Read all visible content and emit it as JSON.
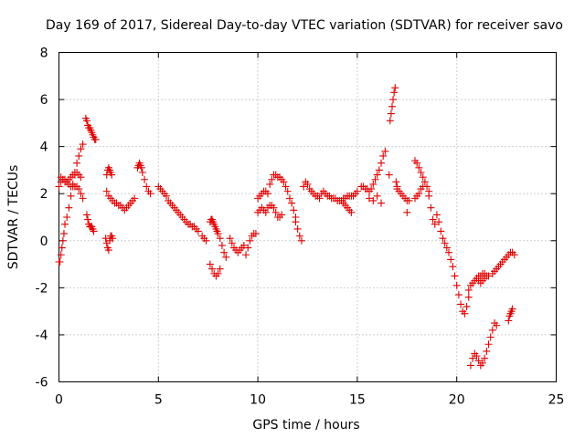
{
  "chart_data": {
    "type": "scatter",
    "title": "Day 169 of 2017, Sidereal Day-to-day VTEC variation (SDTVAR) for receiver savo",
    "xlabel": "GPS time / hours",
    "ylabel": "SDTVAR / TECUs",
    "xlim": [
      0,
      25
    ],
    "ylim": [
      -6,
      8
    ],
    "xticks": [
      0,
      5,
      10,
      15,
      20,
      25
    ],
    "yticks": [
      -6,
      -4,
      -2,
      0,
      2,
      4,
      6,
      8
    ],
    "grid": true,
    "marker": "+",
    "color": "#e00000",
    "series": [
      {
        "name": "SDTVAR",
        "x": [
          0.0,
          0.05,
          0.1,
          0.15,
          0.2,
          0.25,
          0.3,
          0.4,
          0.5,
          0.6,
          0.7,
          0.8,
          0.9,
          1.0,
          1.1,
          1.2,
          0.0,
          0.1,
          0.2,
          0.3,
          0.4,
          0.5,
          0.6,
          0.7,
          0.8,
          0.9,
          1.0,
          1.1,
          1.2,
          0.1,
          0.2,
          0.3,
          0.4,
          0.5,
          0.6,
          0.7,
          0.8,
          0.9,
          1.0,
          1.1,
          1.35,
          1.4,
          1.45,
          1.5,
          1.55,
          1.6,
          1.65,
          1.7,
          1.75,
          1.8,
          1.85,
          1.4,
          1.45,
          1.5,
          1.55,
          1.6,
          1.65,
          1.7,
          1.75,
          2.35,
          2.4,
          2.45,
          2.5,
          2.55,
          2.6,
          2.65,
          2.7,
          2.4,
          2.45,
          2.5,
          2.55,
          2.6,
          2.65,
          2.4,
          2.5,
          2.6,
          2.7,
          2.8,
          2.9,
          3.0,
          3.1,
          3.2,
          3.3,
          3.4,
          3.5,
          3.6,
          3.7,
          3.8,
          3.95,
          4.0,
          4.05,
          4.1,
          4.15,
          4.2,
          4.3,
          4.4,
          4.5,
          4.6,
          5.0,
          5.1,
          5.2,
          5.3,
          5.4,
          5.5,
          5.6,
          5.7,
          5.8,
          5.9,
          6.0,
          6.1,
          6.2,
          6.3,
          6.4,
          6.5,
          6.6,
          6.7,
          6.8,
          6.9,
          7.0,
          7.2,
          7.3,
          7.4,
          7.6,
          7.65,
          7.7,
          7.75,
          7.8,
          7.85,
          7.9,
          7.95,
          8.0,
          8.1,
          8.2,
          8.3,
          8.4,
          7.6,
          7.7,
          7.8,
          7.9,
          8.0,
          8.1,
          8.6,
          8.7,
          8.8,
          8.9,
          9.0,
          9.1,
          9.2,
          9.3,
          9.4,
          9.5,
          9.6,
          9.7,
          9.8,
          9.9,
          10.0,
          10.1,
          10.2,
          10.3,
          10.4,
          10.5,
          10.6,
          10.7,
          10.8,
          10.9,
          11.0,
          11.1,
          11.2,
          11.3,
          11.4,
          11.5,
          11.6,
          11.7,
          11.8,
          11.9,
          10.0,
          10.1,
          10.2,
          10.3,
          10.4,
          10.5,
          10.6,
          10.7,
          10.8,
          10.9,
          11.0,
          11.1,
          11.2,
          11.9,
          12.0,
          12.1,
          12.2,
          12.3,
          12.4,
          12.5,
          12.6,
          12.7,
          12.8,
          12.9,
          13.0,
          13.1,
          13.2,
          13.3,
          13.4,
          13.5,
          13.6,
          13.7,
          13.8,
          13.9,
          14.0,
          14.1,
          14.2,
          14.3,
          14.4,
          14.5,
          14.6,
          14.7,
          14.8,
          14.9,
          15.0,
          14.3,
          14.4,
          14.5,
          14.6,
          14.7,
          15.2,
          15.3,
          15.4,
          15.5,
          15.6,
          15.7,
          15.8,
          15.9,
          16.0,
          16.1,
          16.2,
          16.3,
          16.4,
          15.6,
          15.8,
          16.0,
          16.2,
          16.6,
          16.65,
          16.7,
          16.75,
          16.8,
          16.85,
          16.9,
          16.95,
          17.0,
          17.0,
          17.1,
          17.2,
          17.3,
          17.4,
          17.5,
          17.6,
          17.5,
          17.9,
          18.0,
          18.1,
          18.2,
          18.3,
          18.4,
          18.5,
          18.6,
          17.9,
          18.0,
          18.1,
          18.2,
          18.3,
          18.6,
          18.7,
          18.8,
          18.9,
          19.0,
          19.1,
          19.2,
          19.3,
          19.4,
          19.5,
          19.6,
          19.7,
          19.8,
          19.9,
          20.0,
          20.1,
          20.2,
          20.3,
          20.4,
          20.5,
          20.6,
          20.6,
          20.7,
          20.8,
          20.9,
          21.0,
          21.1,
          21.2,
          21.3,
          21.4,
          20.7,
          20.8,
          20.9,
          21.0,
          21.1,
          21.2,
          21.3,
          21.4,
          21.5,
          21.6,
          21.7,
          21.8,
          21.9,
          22.0,
          21.0,
          21.1,
          21.2,
          21.3,
          21.4,
          21.5,
          21.6,
          21.8,
          21.9,
          22.0,
          22.1,
          22.2,
          22.3,
          22.4,
          22.5,
          22.6,
          22.7,
          22.8,
          22.9,
          22.6,
          22.65,
          22.7,
          22.75,
          22.8
        ],
        "y": [
          -0.9,
          -0.9,
          -0.6,
          -0.3,
          0.0,
          0.3,
          0.7,
          1.0,
          1.4,
          1.9,
          2.4,
          2.9,
          3.3,
          3.6,
          3.9,
          4.1,
          2.3,
          2.5,
          2.6,
          2.6,
          2.5,
          2.4,
          2.3,
          2.3,
          2.3,
          2.3,
          2.2,
          2.0,
          1.8,
          2.7,
          2.6,
          2.5,
          2.5,
          2.6,
          2.7,
          2.8,
          2.8,
          2.9,
          2.8,
          2.7,
          5.2,
          5.1,
          4.9,
          4.8,
          4.8,
          4.7,
          4.6,
          4.5,
          4.4,
          4.3,
          4.3,
          1.1,
          0.9,
          0.7,
          0.6,
          0.6,
          0.6,
          0.5,
          0.4,
          0.1,
          -0.1,
          -0.3,
          -0.4,
          0.0,
          0.2,
          0.2,
          0.1,
          2.8,
          3.0,
          3.1,
          3.0,
          2.9,
          2.8,
          2.1,
          1.9,
          1.8,
          1.7,
          1.6,
          1.6,
          1.5,
          1.5,
          1.4,
          1.3,
          1.4,
          1.5,
          1.6,
          1.7,
          1.8,
          3.1,
          3.2,
          3.3,
          3.2,
          3.1,
          2.9,
          2.6,
          2.3,
          2.1,
          2.0,
          2.3,
          2.2,
          2.1,
          2.0,
          1.9,
          1.7,
          1.6,
          1.5,
          1.4,
          1.3,
          1.2,
          1.1,
          1.0,
          0.9,
          0.8,
          0.7,
          0.7,
          0.6,
          0.6,
          0.5,
          0.4,
          0.2,
          0.1,
          0.0,
          0.8,
          0.9,
          0.9,
          0.8,
          0.7,
          0.6,
          0.5,
          0.4,
          0.3,
          0.1,
          -0.2,
          -0.5,
          -0.7,
          -1.0,
          -1.2,
          -1.4,
          -1.5,
          -1.4,
          -1.2,
          0.1,
          -0.1,
          -0.3,
          -0.4,
          -0.5,
          -0.4,
          -0.3,
          -0.2,
          -0.6,
          -0.3,
          0.0,
          0.2,
          0.3,
          0.3,
          1.8,
          1.9,
          2.0,
          2.1,
          2.1,
          2.0,
          2.4,
          2.6,
          2.8,
          2.8,
          2.7,
          2.7,
          2.6,
          2.5,
          2.3,
          2.1,
          1.8,
          1.6,
          1.3,
          1.0,
          1.2,
          1.3,
          1.4,
          1.3,
          1.2,
          1.4,
          1.5,
          1.5,
          1.4,
          1.2,
          1.0,
          1.0,
          1.1,
          0.8,
          0.5,
          0.2,
          0.0,
          2.3,
          2.5,
          2.4,
          2.2,
          2.1,
          2.0,
          1.9,
          1.9,
          1.8,
          2.0,
          2.1,
          2.0,
          1.9,
          1.9,
          1.8,
          1.8,
          1.8,
          1.7,
          1.7,
          1.7,
          1.8,
          1.8,
          1.9,
          1.9,
          1.9,
          1.9,
          2.0,
          2.1,
          1.6,
          1.5,
          1.4,
          1.3,
          1.2,
          2.3,
          2.3,
          2.2,
          2.2,
          2.1,
          2.2,
          2.4,
          2.6,
          2.8,
          3.0,
          3.3,
          3.6,
          3.8,
          1.8,
          1.7,
          1.9,
          1.6,
          2.8,
          5.1,
          5.4,
          5.7,
          6.0,
          6.3,
          6.5,
          2.5,
          2.3,
          2.2,
          2.1,
          2.0,
          1.9,
          1.8,
          1.7,
          1.7,
          1.2,
          3.4,
          3.3,
          3.1,
          2.9,
          2.7,
          2.5,
          2.3,
          2.1,
          1.8,
          1.9,
          2.0,
          2.2,
          2.3,
          1.9,
          1.4,
          0.9,
          0.7,
          1.1,
          0.8,
          0.4,
          0.1,
          -0.1,
          -0.3,
          -0.5,
          -0.8,
          -1.1,
          -1.5,
          -1.9,
          -2.3,
          -2.7,
          -3.0,
          -3.1,
          -2.8,
          -2.4,
          -2.1,
          -1.9,
          -1.8,
          -1.7,
          -1.6,
          -1.5,
          -1.5,
          -1.4,
          -1.4,
          -5.3,
          -5.0,
          -4.8,
          -4.9,
          -5.1,
          -5.3,
          -5.2,
          -5.0,
          -4.7,
          -4.4,
          -4.1,
          -3.8,
          -3.5,
          -3.6,
          -1.6,
          -1.7,
          -1.8,
          -1.7,
          -1.6,
          -1.5,
          -1.5,
          -1.4,
          -1.3,
          -1.2,
          -1.1,
          -1.0,
          -0.9,
          -0.8,
          -0.7,
          -0.6,
          -0.5,
          -0.5,
          -0.6,
          -3.4,
          -3.2,
          -3.1,
          -3.0,
          -2.9
        ]
      }
    ]
  }
}
